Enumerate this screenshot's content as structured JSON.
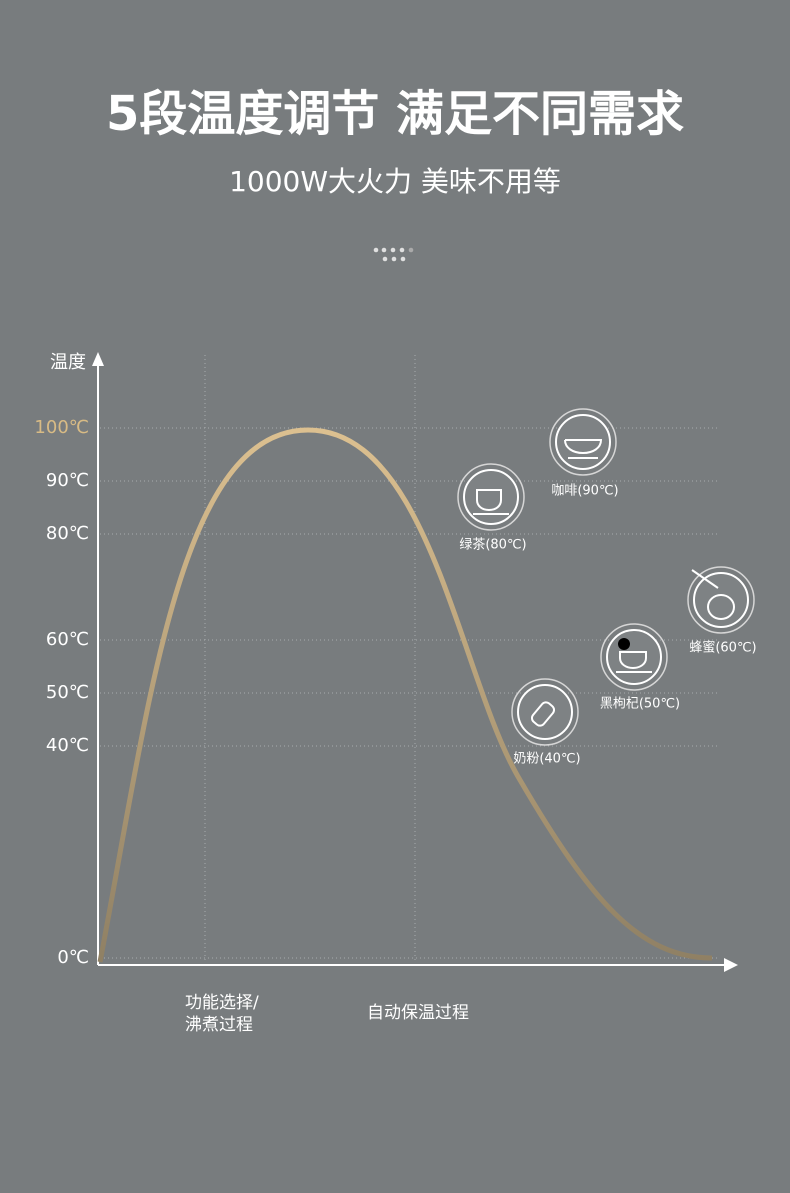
{
  "header": {
    "title": "5段温度调节 满足不同需求",
    "subtitle": "1000W大火力 美味不用等"
  },
  "axis": {
    "y_label": "温度",
    "ticks": [
      {
        "value": 0,
        "label": "0℃"
      },
      {
        "value": 40,
        "label": "40℃"
      },
      {
        "value": 50,
        "label": "50℃"
      },
      {
        "value": 60,
        "label": "60℃"
      },
      {
        "value": 80,
        "label": "80℃"
      },
      {
        "value": 90,
        "label": "90℃"
      },
      {
        "value": 100,
        "label": "100℃"
      }
    ]
  },
  "items": [
    {
      "label": "咖啡(90℃)"
    },
    {
      "label": "绿茶(80℃)"
    },
    {
      "label": "蜂蜜(60℃)"
    },
    {
      "label": "黑枸杞(50℃)"
    },
    {
      "label": "奶粉(40℃)"
    }
  ],
  "phases": [
    {
      "lines": [
        "功能选择/",
        "沸煮过程"
      ]
    },
    {
      "lines": [
        "自动保温过程"
      ]
    }
  ]
}
